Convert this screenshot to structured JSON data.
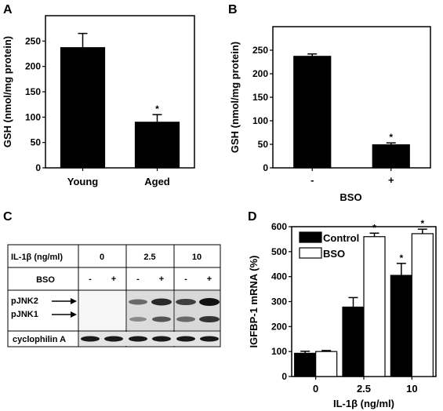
{
  "panels": {
    "a": "A",
    "b": "B",
    "c": "C",
    "d": "D"
  },
  "chart_data": [
    {
      "id": "A",
      "type": "bar",
      "ylabel": "GSH (nmol/mg protein)",
      "xlabel": "",
      "ylim": [
        0,
        300
      ],
      "yticks": [
        0,
        50,
        100,
        150,
        200,
        250
      ],
      "categories": [
        "Young",
        "Aged"
      ],
      "series": [
        {
          "values": [
            237,
            90
          ],
          "errors": [
            28,
            15
          ],
          "color": "#000000"
        }
      ],
      "significance": [
        "",
        "*"
      ]
    },
    {
      "id": "B",
      "type": "bar",
      "ylabel": "GSH (nmol/mg protein)",
      "xlabel": "BSO",
      "ylim": [
        0,
        300
      ],
      "yticks": [
        0,
        50,
        100,
        150,
        200,
        250
      ],
      "categories": [
        "-",
        "+"
      ],
      "series": [
        {
          "values": [
            237,
            49
          ],
          "errors": [
            5,
            4
          ],
          "color": "#000000"
        }
      ],
      "significance": [
        "",
        "*"
      ]
    },
    {
      "id": "D",
      "type": "bar",
      "ylabel": "IGFBP-1 mRNA (%)",
      "xlabel": "IL-1β  (ng/ml)",
      "ylim": [
        0,
        600
      ],
      "yticks": [
        0,
        100,
        200,
        300,
        400,
        500,
        600
      ],
      "categories": [
        "0",
        "2.5",
        "10"
      ],
      "legend": "top-left",
      "series": [
        {
          "name": "Control",
          "values": [
            93,
            278,
            405
          ],
          "errors": [
            8,
            38,
            48
          ],
          "color": "#000000"
        },
        {
          "name": "BSO",
          "values": [
            100,
            560,
            572
          ],
          "errors": [
            4,
            14,
            18
          ],
          "color": "#ffffff"
        }
      ],
      "significance": [
        [
          "",
          ""
        ],
        [
          "",
          "*"
        ],
        [
          "*",
          "*"
        ]
      ]
    }
  ],
  "blot": {
    "header_label": "IL-1β (ng/ml)",
    "doses": [
      "0",
      "2.5",
      "10"
    ],
    "bso_label": "BSO",
    "bso_signs": [
      "-",
      "+",
      "-",
      "+",
      "-",
      "+"
    ],
    "band_labels": [
      "pJNK2",
      "pJNK1"
    ],
    "loading_label": "cyclophilin A"
  }
}
